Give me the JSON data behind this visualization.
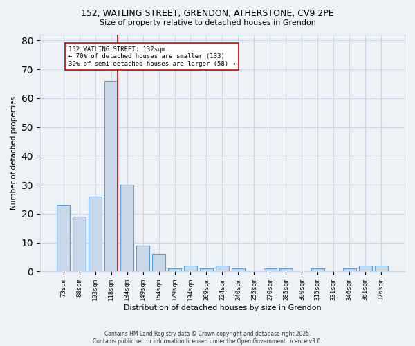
{
  "title": "152, WATLING STREET, GRENDON, ATHERSTONE, CV9 2PE",
  "subtitle": "Size of property relative to detached houses in Grendon",
  "xlabel": "Distribution of detached houses by size in Grendon",
  "ylabel": "Number of detached properties",
  "bins": [
    "73sqm",
    "88sqm",
    "103sqm",
    "118sqm",
    "134sqm",
    "149sqm",
    "164sqm",
    "179sqm",
    "194sqm",
    "209sqm",
    "224sqm",
    "240sqm",
    "255sqm",
    "270sqm",
    "285sqm",
    "300sqm",
    "315sqm",
    "331sqm",
    "346sqm",
    "361sqm",
    "376sqm"
  ],
  "values": [
    23,
    19,
    26,
    66,
    30,
    9,
    6,
    1,
    2,
    1,
    2,
    1,
    0,
    1,
    1,
    0,
    1,
    0,
    1,
    2,
    2
  ],
  "bar_color": "#c8d8e8",
  "bar_edge_color": "#5b9bd5",
  "bar_edge_width": 0.8,
  "grid_color": "#c8d8e8",
  "background_color": "#eef2f7",
  "property_line_color": "#cc0000",
  "annotation_text": "152 WATLING STREET: 132sqm\n← 70% of detached houses are smaller (133)\n30% of semi-detached houses are larger (58) →",
  "annotation_box_color": "#ffffff",
  "annotation_box_edge": "#cc0000",
  "ylim": [
    0,
    82
  ],
  "yticks": [
    0,
    10,
    20,
    30,
    40,
    50,
    60,
    70,
    80
  ],
  "footer": "Contains HM Land Registry data © Crown copyright and database right 2025.\nContains public sector information licensed under the Open Government Licence v3.0."
}
